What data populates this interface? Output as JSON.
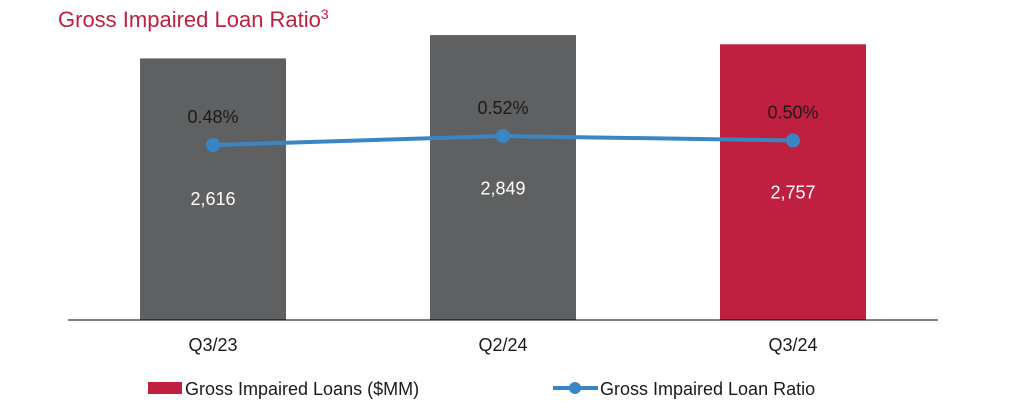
{
  "title": "Gross Impaired Loan Ratio",
  "title_footnote": "3",
  "chart_data": {
    "type": "bar",
    "categories": [
      "Q3/23",
      "Q2/24",
      "Q3/24"
    ],
    "series": [
      {
        "name": "Gross Impaired Loans ($MM)",
        "type": "bar",
        "values": [
          2616,
          2849,
          2757
        ],
        "labels": [
          "2,616",
          "2,849",
          "2,757"
        ],
        "colors": [
          "#5f6061",
          "#5f6061",
          "#c0203f"
        ]
      },
      {
        "name": "Gross Impaired Loan Ratio",
        "type": "line",
        "values": [
          0.48,
          0.52,
          0.5
        ],
        "labels": [
          "0.48%",
          "0.52%",
          "0.50%"
        ],
        "color": "#3a86c4"
      }
    ],
    "bar_ylim": [
      0,
      3000
    ],
    "line_ylim": [
      0,
      0.6
    ],
    "grid": false,
    "legend_position": "bottom"
  },
  "legend": {
    "bar_label": "Gross Impaired Loans ($MM)",
    "line_label": "Gross Impaired Loan Ratio"
  },
  "colors": {
    "title": "#c0203f",
    "legend_bar": "#c0203f",
    "line": "#3a86c4"
  }
}
